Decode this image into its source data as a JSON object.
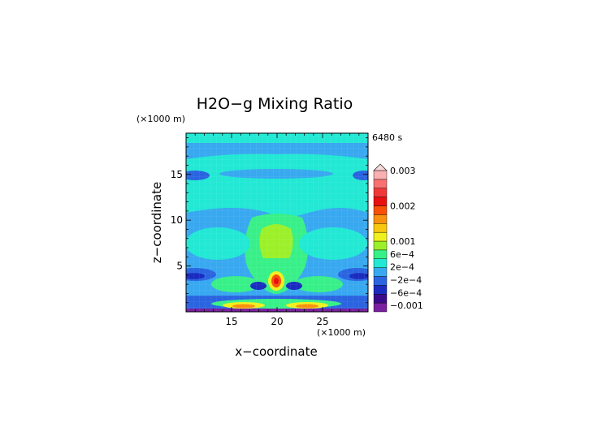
{
  "chart_data": {
    "type": "heatmap",
    "title": "H2O−g Mixing Ratio",
    "time_label": "6480 s",
    "xlabel": "x−coordinate",
    "ylabel": "z−coordinate",
    "x_unit": "(×1000 m)",
    "z_unit": "(×1000 m)",
    "xlim": [
      10,
      30
    ],
    "ylim": [
      0,
      19.5
    ],
    "x_ticks": [
      15,
      20,
      25
    ],
    "y_ticks": [
      5,
      10,
      15
    ],
    "grid": false,
    "legend": "right",
    "colorbar": {
      "tick_labels": [
        "0.003",
        "0.002",
        "0.001",
        "6e−4",
        "2e−4",
        "−2e−4",
        "−6e−4",
        "−0.001"
      ],
      "tick_values": [
        0.003,
        0.002,
        0.001,
        0.0006,
        0.0002,
        -0.0002,
        -0.0006,
        -0.001
      ],
      "colors": [
        "#7a1fa0",
        "#3a0a8c",
        "#1a2cc0",
        "#2a64e0",
        "#38a8f0",
        "#22e8d4",
        "#38f088",
        "#9cf02a",
        "#f0f020",
        "#f8c810",
        "#f89010",
        "#f85008",
        "#e81010",
        "#f03838",
        "#f87070",
        "#f8b0b0"
      ]
    }
  }
}
